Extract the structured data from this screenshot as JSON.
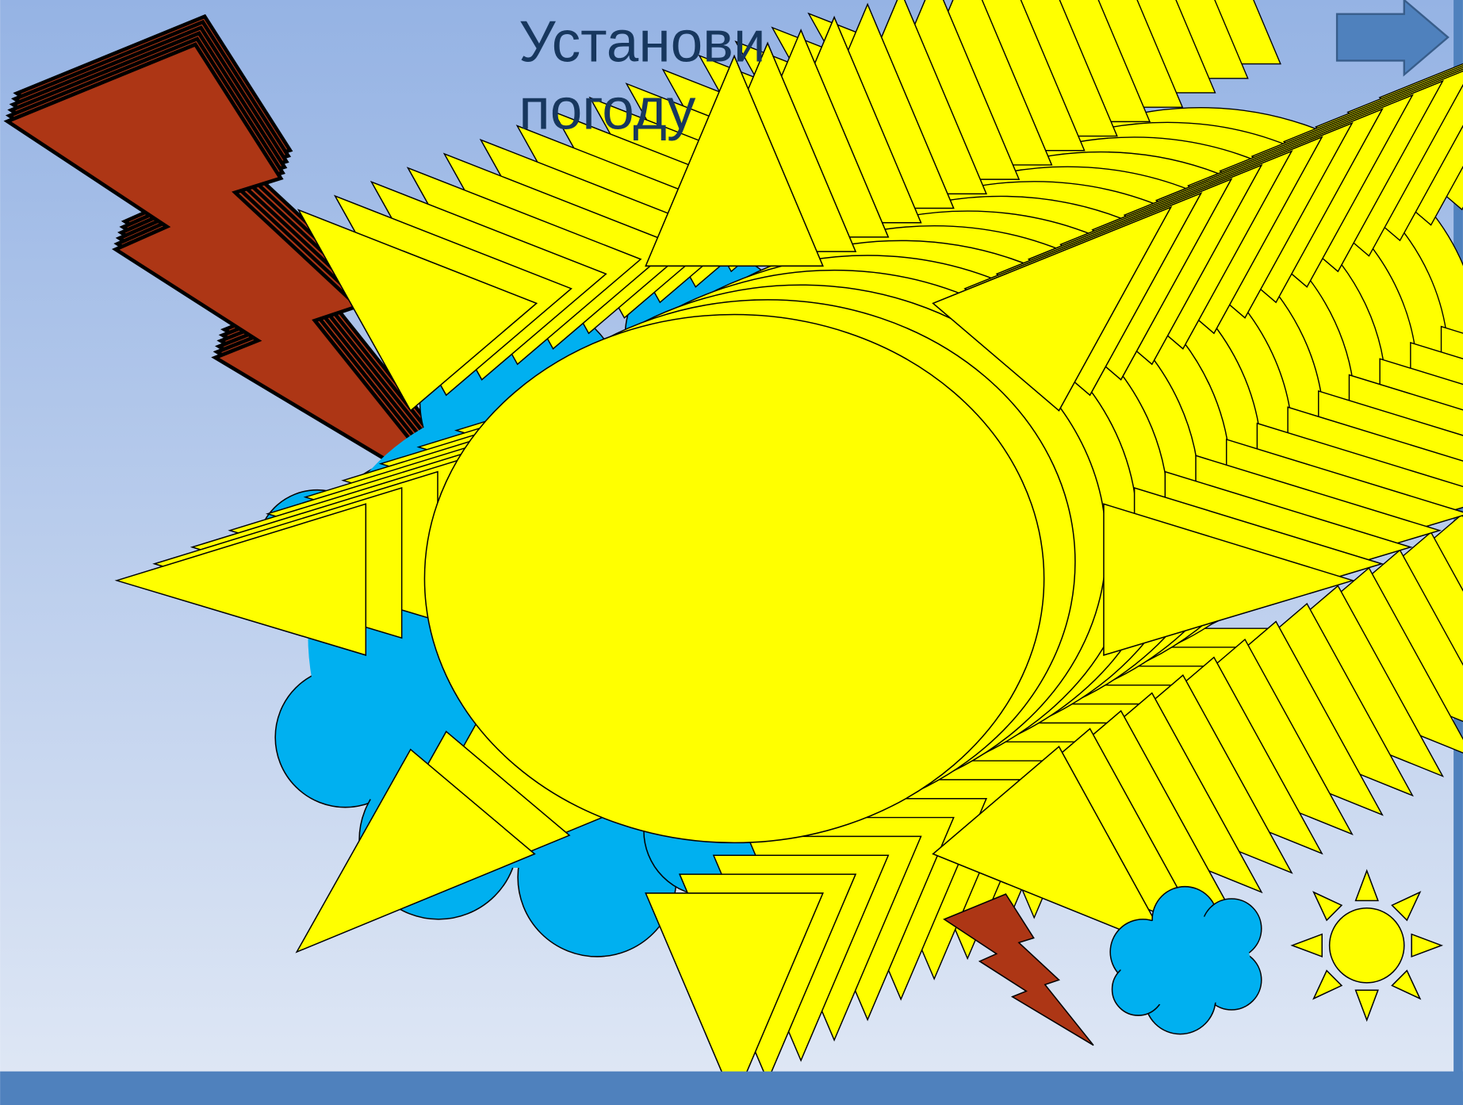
{
  "slide": {
    "title_lines": [
      "Установи",
      "погоду"
    ]
  }
}
